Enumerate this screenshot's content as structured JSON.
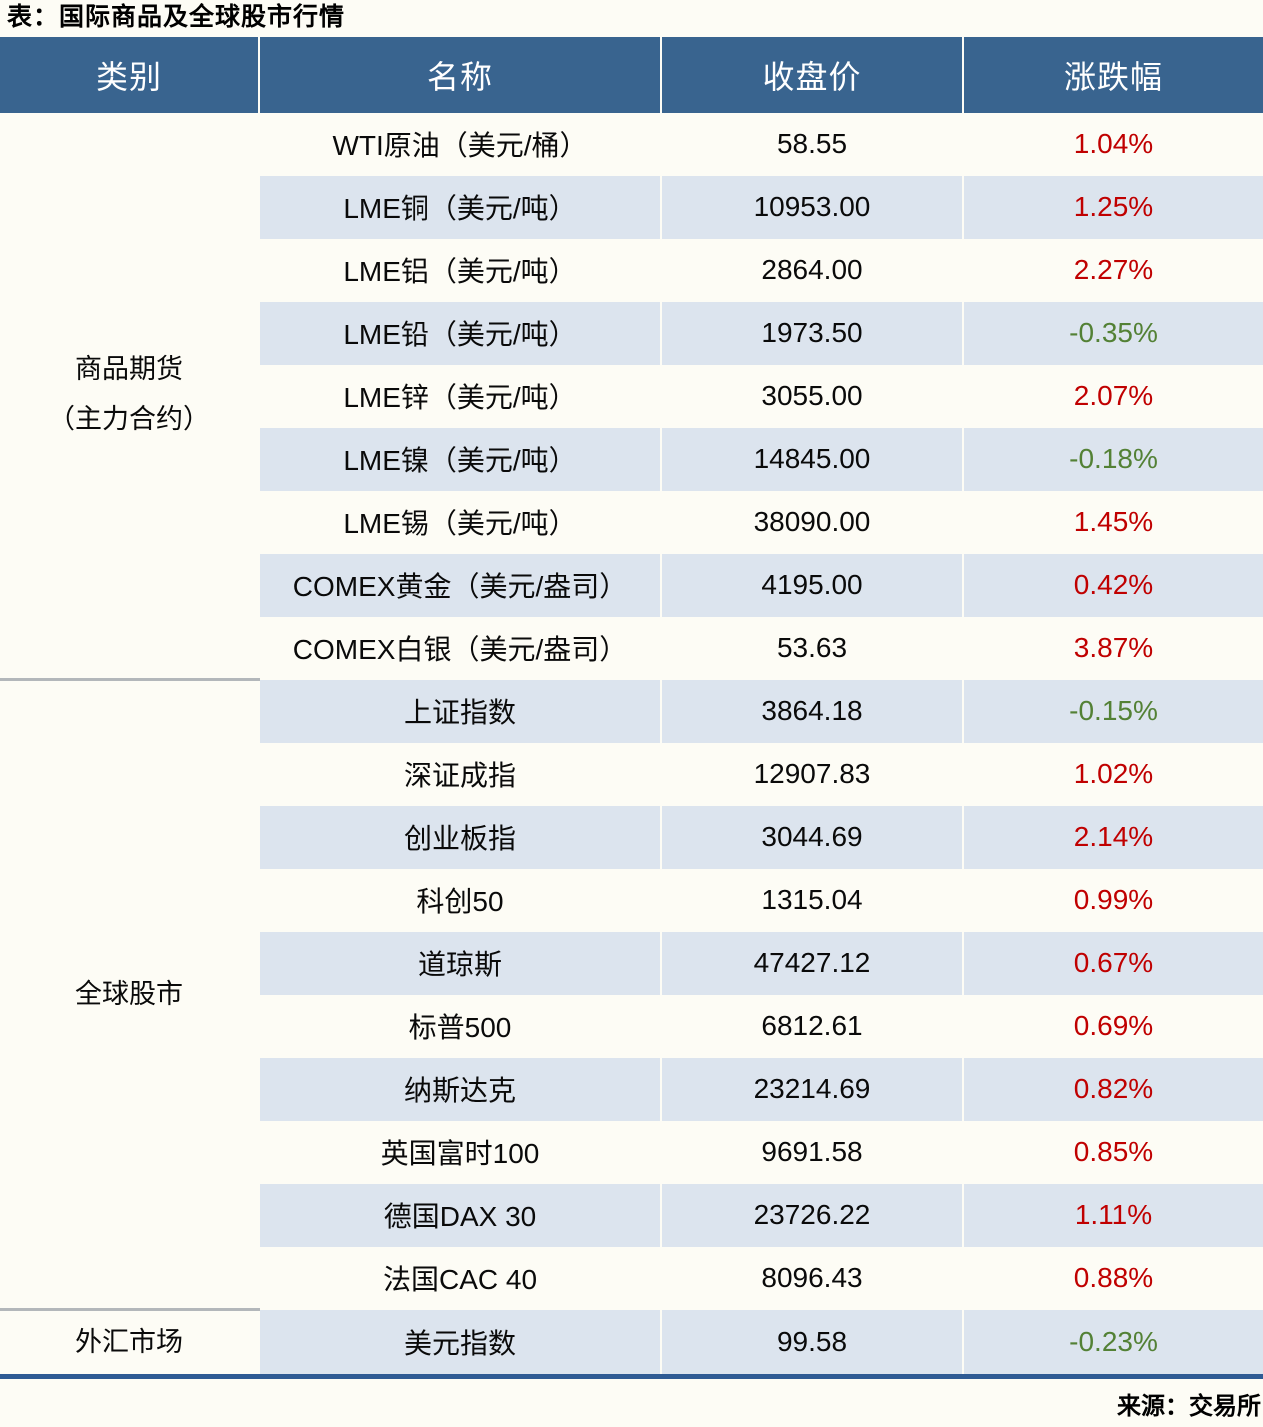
{
  "colors": {
    "paper": "#fdfcf5",
    "header_bg": "#39648f",
    "header_text": "#ffffff",
    "band": "#dce4ee",
    "up": "#c00000",
    "down": "#538135",
    "divider": "#b3b7ba",
    "bottom_border": "#2f5b94",
    "text": "#0e0e0e"
  },
  "chart_data": {
    "type": "table",
    "title": "表：国际商品及全球股市行情",
    "columns": [
      "类别",
      "名称",
      "收盘价",
      "涨跌幅"
    ],
    "sections": [
      {
        "category": "商品期货\n（主力合约）",
        "rows": [
          [
            "WTI原油（美元/桶）",
            "58.55",
            "1.04%"
          ],
          [
            "LME铜（美元/吨）",
            "10953.00",
            "1.25%"
          ],
          [
            "LME铝（美元/吨）",
            "2864.00",
            "2.27%"
          ],
          [
            "LME铅（美元/吨）",
            "1973.50",
            "-0.35%"
          ],
          [
            "LME锌（美元/吨）",
            "3055.00",
            "2.07%"
          ],
          [
            "LME镍（美元/吨）",
            "14845.00",
            "-0.18%"
          ],
          [
            "LME锡（美元/吨）",
            "38090.00",
            "1.45%"
          ],
          [
            "COMEX黄金（美元/盎司）",
            "4195.00",
            "0.42%"
          ],
          [
            "COMEX白银（美元/盎司）",
            "53.63",
            "3.87%"
          ]
        ]
      },
      {
        "category": "全球股市",
        "rows": [
          [
            "上证指数",
            "3864.18",
            "-0.15%"
          ],
          [
            "深证成指",
            "12907.83",
            "1.02%"
          ],
          [
            "创业板指",
            "3044.69",
            "2.14%"
          ],
          [
            "科创50",
            "1315.04",
            "0.99%"
          ],
          [
            "道琼斯",
            "47427.12",
            "0.67%"
          ],
          [
            "标普500",
            "6812.61",
            "0.69%"
          ],
          [
            "纳斯达克",
            "23214.69",
            "0.82%"
          ],
          [
            "英国富时100",
            "9691.58",
            "0.85%"
          ],
          [
            "德国DAX 30",
            "23726.22",
            "1.11%"
          ],
          [
            "法国CAC 40",
            "8096.43",
            "0.88%"
          ]
        ]
      },
      {
        "category": "外汇市场",
        "rows": [
          [
            "美元指数",
            "99.58",
            "-0.23%"
          ]
        ]
      }
    ],
    "source": "来源：交易所"
  }
}
